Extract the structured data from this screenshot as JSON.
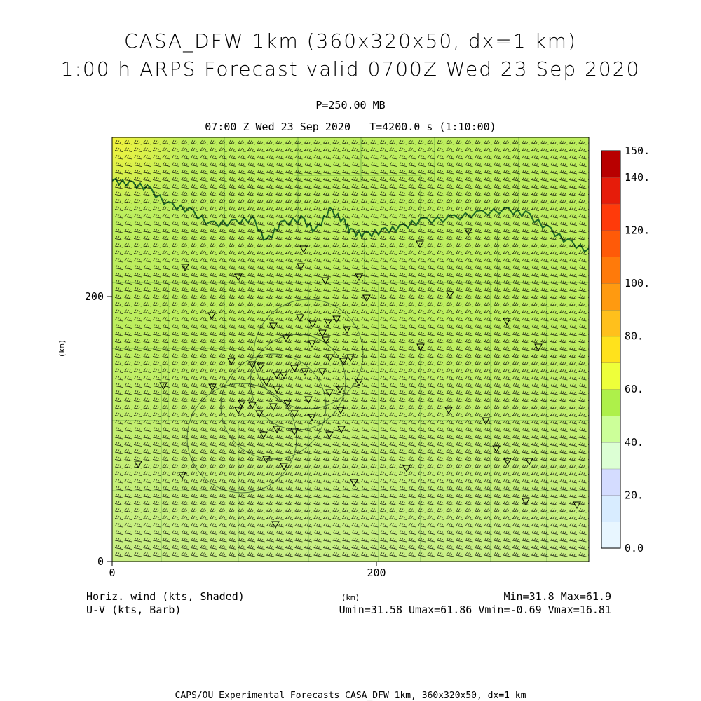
{
  "header": {
    "title_line1": "CASA_DFW 1km (360x320x50, dx=1 km)",
    "title_line2": "1:00 h ARPS Forecast valid 0700Z Wed 23 Sep 2020",
    "level": "P=250.00 MB",
    "valid_time": "07:00 Z Wed 23 Sep 2020",
    "model_time": "T=4200.0 s (1:10:00)"
  },
  "map": {
    "x_axis_label": "(km)",
    "y_axis_label": "(km)",
    "x_ticks": [
      "0",
      "200"
    ],
    "y_ticks": [
      "0",
      "200"
    ],
    "x_range_km": [
      0,
      360
    ],
    "y_range_km": [
      0,
      320
    ],
    "colorbar": {
      "labels": [
        "150.",
        "140.",
        "120.",
        "100.",
        "80.",
        "60.",
        "40.",
        "20.",
        "0.0"
      ],
      "label_values": [
        150,
        140,
        120,
        100,
        80,
        60,
        40,
        20,
        0
      ],
      "levels": [
        0,
        10,
        20,
        30,
        40,
        50,
        60,
        70,
        80,
        90,
        100,
        110,
        120,
        130,
        140,
        150
      ],
      "colors": [
        "#e8f6ff",
        "#d8ecff",
        "#d4dcff",
        "#dcffd4",
        "#ccff99",
        "#aef04a",
        "#eeff3a",
        "#ffe21c",
        "#ffc01c",
        "#ff9a10",
        "#ff7a0a",
        "#ff5a08",
        "#ff3a0a",
        "#e61c0a",
        "#b80000"
      ]
    },
    "field_colors": {
      "low": "#c9ef86",
      "mid": "#bdee5e",
      "high": "#f4f33c"
    },
    "boundary_color": "#1f6a2a",
    "marker_symbol": "inverted-triangle",
    "barb_color": "#000000"
  },
  "footer": {
    "left_line1": "Horiz. wind (kts, Shaded)",
    "left_line2": "U-V (kts, Barb)",
    "center_unit": "(km)",
    "right_line1": "Min=31.8 Max=61.9",
    "right_line2": "Umin=31.58 Umax=61.86 Vmin=-0.69 Vmax=16.81"
  },
  "credit": "CAPS/OU Experimental Forecasts  CASA_DFW 1km, 360x320x50, dx=1 km"
}
